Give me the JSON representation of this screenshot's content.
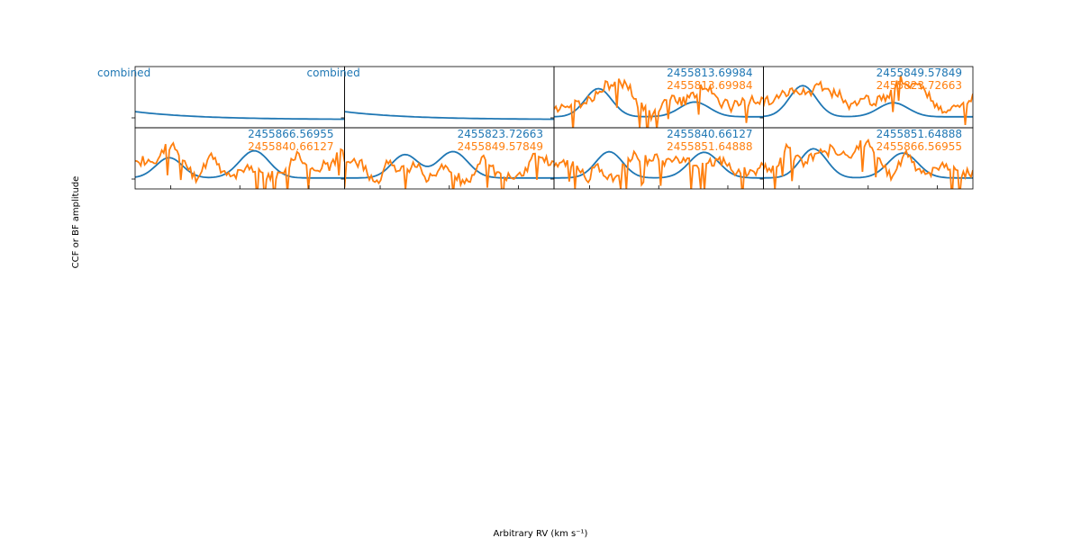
{
  "figure": {
    "xlabel": "Arbitrary RV (km s$^{-1}$)",
    "xlabel_display": "Arbitrary RV (km s⁻¹)",
    "ylabel": "CCF or BF amplitude"
  },
  "colors": {
    "blue": "#1f77b4",
    "orange": "#ff7f0e"
  },
  "chart_data": {
    "type": "line",
    "grid": false,
    "layout": "2 rows x 4 columns of small panels sharing axes",
    "panels": [
      {
        "row": 0,
        "col": 0,
        "labels": [
          {
            "text": "combined",
            "color": "blue",
            "align": "left"
          }
        ],
        "series": [
          "blue"
        ],
        "seed": 1
      },
      {
        "row": 0,
        "col": 1,
        "labels": [
          {
            "text": "combined",
            "color": "blue",
            "align": "left"
          }
        ],
        "series": [
          "blue"
        ],
        "seed": 2
      },
      {
        "row": 0,
        "col": 2,
        "labels": [
          {
            "text": "2455813.69984",
            "color": "blue",
            "align": "right"
          },
          {
            "text": "2455813.69984",
            "color": "orange",
            "align": "right"
          }
        ],
        "series": [
          "blue",
          "orange"
        ],
        "seed": 3
      },
      {
        "row": 0,
        "col": 3,
        "labels": [
          {
            "text": "2455849.57849",
            "color": "blue",
            "align": "right"
          },
          {
            "text": "2455823.72663",
            "color": "orange",
            "align": "right"
          }
        ],
        "series": [
          "blue",
          "orange"
        ],
        "seed": 4
      },
      {
        "row": 1,
        "col": 0,
        "labels": [
          {
            "text": "2455866.56955",
            "color": "blue",
            "align": "right"
          },
          {
            "text": "2455840.66127",
            "color": "orange",
            "align": "right"
          }
        ],
        "series": [
          "blue",
          "orange"
        ],
        "seed": 5
      },
      {
        "row": 1,
        "col": 1,
        "labels": [
          {
            "text": "2455823.72663",
            "color": "blue",
            "align": "right"
          },
          {
            "text": "2455849.57849",
            "color": "orange",
            "align": "right"
          }
        ],
        "series": [
          "blue",
          "orange"
        ],
        "seed": 6
      },
      {
        "row": 1,
        "col": 2,
        "labels": [
          {
            "text": "2455840.66127",
            "color": "blue",
            "align": "right"
          },
          {
            "text": "2455851.64888",
            "color": "orange",
            "align": "right"
          }
        ],
        "series": [
          "blue",
          "orange"
        ],
        "seed": 7
      },
      {
        "row": 1,
        "col": 3,
        "labels": [
          {
            "text": "2455851.64888",
            "color": "blue",
            "align": "right"
          },
          {
            "text": "2455866.56955",
            "color": "orange",
            "align": "right"
          }
        ],
        "series": [
          "blue",
          "orange"
        ],
        "seed": 8
      }
    ]
  }
}
